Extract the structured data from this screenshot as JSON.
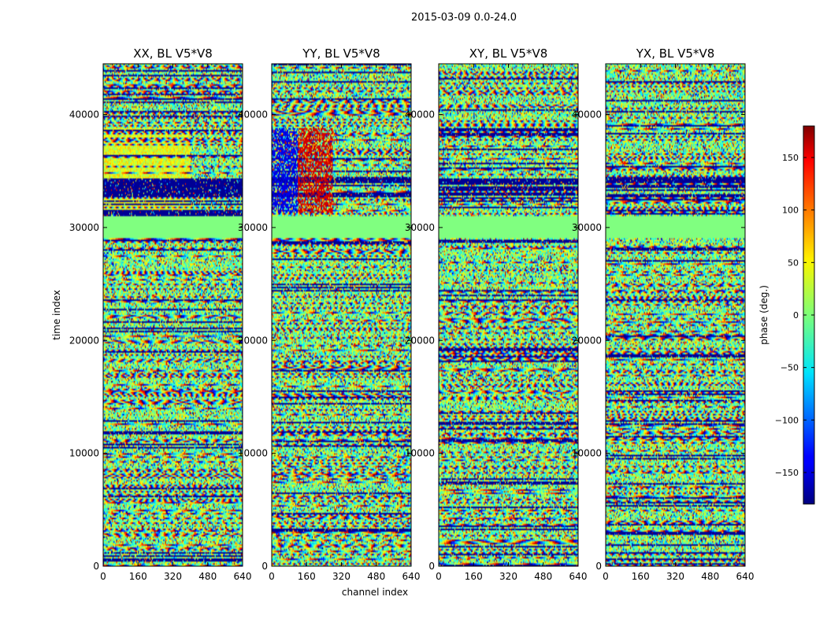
{
  "figure": {
    "suptitle": "2015-03-09 0.0-24.0",
    "xlabel": "channel index",
    "ylabel": "time index"
  },
  "chart_data": {
    "type": "heatmap",
    "suptitle": "2015-03-09 0.0-24.0",
    "xlabel": "channel index",
    "ylabel": "time index",
    "xlim": [
      0,
      640
    ],
    "ylim": [
      0,
      44500
    ],
    "xticks": [
      0,
      160,
      320,
      480,
      640
    ],
    "yticks": [
      0,
      10000,
      20000,
      30000,
      40000
    ],
    "colormap": "jet",
    "colorbar": {
      "label": "phase (deg.)",
      "range": [
        -180,
        180
      ],
      "ticks": [
        -150,
        -100,
        -50,
        0,
        50,
        100,
        150
      ],
      "tick_labels": [
        "−150",
        "−100",
        "−50",
        "0",
        "50",
        "100",
        "150"
      ],
      "placement": "right"
    },
    "panels": [
      {
        "title": "XX, BL V5*V8",
        "polarization": "XX"
      },
      {
        "title": "YY, BL V5*V8",
        "polarization": "YY"
      },
      {
        "title": "XY, BL V5*V8",
        "polarization": "XY"
      },
      {
        "title": "YX, BL V5*V8",
        "polarization": "YX"
      }
    ],
    "flagged_value": 0,
    "flagged_rows_approx": [
      [
        29000,
        31000
      ]
    ]
  }
}
